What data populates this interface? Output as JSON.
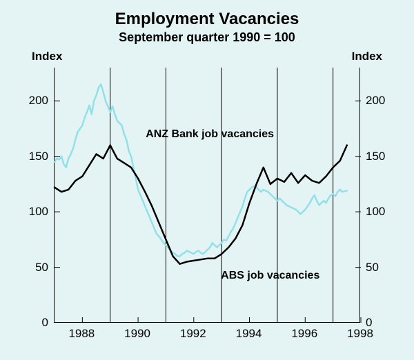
{
  "chart": {
    "type": "line",
    "title": "Employment Vacancies",
    "subtitle": "September quarter 1990 = 100",
    "y_axis_label_left": "Index",
    "y_axis_label_right": "Index",
    "background_color": "#e4f4f5",
    "border_color": "#000000",
    "ylim": [
      0,
      230
    ],
    "yticks": [
      0,
      50,
      100,
      150,
      200
    ],
    "xlim": [
      1987,
      1998
    ],
    "xticks": [
      1988,
      1990,
      1992,
      1994,
      1996,
      1998
    ],
    "major_grid_x": [
      1989,
      1991,
      1993,
      1995,
      1997
    ],
    "xtick_marks": [
      1988,
      1990,
      1992,
      1994,
      1996,
      1998
    ],
    "series": [
      {
        "name": "ANZ Bank  job vacancies",
        "label_pos": {
          "x": 1990.3,
          "y": 175
        },
        "color": "#93e0e8",
        "line_width": 2.5,
        "data": [
          [
            1987.0,
            145
          ],
          [
            1987.083,
            148
          ],
          [
            1987.167,
            147
          ],
          [
            1987.25,
            150
          ],
          [
            1987.333,
            143
          ],
          [
            1987.417,
            140
          ],
          [
            1987.5,
            148
          ],
          [
            1987.583,
            152
          ],
          [
            1987.667,
            157
          ],
          [
            1987.75,
            165
          ],
          [
            1987.833,
            172
          ],
          [
            1987.917,
            175
          ],
          [
            1988.0,
            178
          ],
          [
            1988.083,
            185
          ],
          [
            1988.167,
            190
          ],
          [
            1988.25,
            196
          ],
          [
            1988.333,
            188
          ],
          [
            1988.417,
            200
          ],
          [
            1988.5,
            205
          ],
          [
            1988.583,
            212
          ],
          [
            1988.667,
            215
          ],
          [
            1988.75,
            208
          ],
          [
            1988.833,
            200
          ],
          [
            1988.917,
            195
          ],
          [
            1989.0,
            190
          ],
          [
            1989.083,
            195
          ],
          [
            1989.167,
            188
          ],
          [
            1989.25,
            182
          ],
          [
            1989.333,
            180
          ],
          [
            1989.417,
            178
          ],
          [
            1989.5,
            170
          ],
          [
            1989.583,
            165
          ],
          [
            1989.667,
            155
          ],
          [
            1989.75,
            150
          ],
          [
            1989.833,
            140
          ],
          [
            1989.917,
            130
          ],
          [
            1990.0,
            120
          ],
          [
            1990.083,
            115
          ],
          [
            1990.167,
            110
          ],
          [
            1990.25,
            105
          ],
          [
            1990.333,
            100
          ],
          [
            1990.417,
            95
          ],
          [
            1990.5,
            90
          ],
          [
            1990.583,
            85
          ],
          [
            1990.667,
            80
          ],
          [
            1990.75,
            78
          ],
          [
            1990.833,
            75
          ],
          [
            1990.917,
            72
          ],
          [
            1991.0,
            70
          ],
          [
            1991.083,
            68
          ],
          [
            1991.167,
            65
          ],
          [
            1991.25,
            63
          ],
          [
            1991.333,
            62
          ],
          [
            1991.417,
            60
          ],
          [
            1991.5,
            60
          ],
          [
            1991.583,
            62
          ],
          [
            1991.667,
            63
          ],
          [
            1991.75,
            65
          ],
          [
            1991.833,
            64
          ],
          [
            1991.917,
            63
          ],
          [
            1992.0,
            62
          ],
          [
            1992.083,
            64
          ],
          [
            1992.167,
            65
          ],
          [
            1992.25,
            63
          ],
          [
            1992.333,
            62
          ],
          [
            1992.417,
            64
          ],
          [
            1992.5,
            66
          ],
          [
            1992.583,
            68
          ],
          [
            1992.667,
            72
          ],
          [
            1992.75,
            70
          ],
          [
            1992.833,
            68
          ],
          [
            1992.917,
            70
          ],
          [
            1993.0,
            72
          ],
          [
            1993.083,
            75
          ],
          [
            1993.167,
            74
          ],
          [
            1993.25,
            78
          ],
          [
            1993.333,
            82
          ],
          [
            1993.417,
            85
          ],
          [
            1993.5,
            90
          ],
          [
            1993.583,
            95
          ],
          [
            1993.667,
            100
          ],
          [
            1993.75,
            105
          ],
          [
            1993.833,
            112
          ],
          [
            1993.917,
            118
          ],
          [
            1994.0,
            120
          ],
          [
            1994.083,
            122
          ],
          [
            1994.167,
            123
          ],
          [
            1994.25,
            122
          ],
          [
            1994.333,
            120
          ],
          [
            1994.417,
            118
          ],
          [
            1994.5,
            120
          ],
          [
            1994.583,
            119
          ],
          [
            1994.667,
            118
          ],
          [
            1994.75,
            116
          ],
          [
            1994.833,
            114
          ],
          [
            1994.917,
            112
          ],
          [
            1995.0,
            110
          ],
          [
            1995.083,
            112
          ],
          [
            1995.167,
            110
          ],
          [
            1995.25,
            108
          ],
          [
            1995.333,
            106
          ],
          [
            1995.417,
            105
          ],
          [
            1995.5,
            104
          ],
          [
            1995.583,
            103
          ],
          [
            1995.667,
            102
          ],
          [
            1995.75,
            100
          ],
          [
            1995.833,
            98
          ],
          [
            1995.917,
            100
          ],
          [
            1996.0,
            102
          ],
          [
            1996.083,
            105
          ],
          [
            1996.167,
            108
          ],
          [
            1996.25,
            112
          ],
          [
            1996.333,
            115
          ],
          [
            1996.417,
            110
          ],
          [
            1996.5,
            106
          ],
          [
            1996.583,
            108
          ],
          [
            1996.667,
            110
          ],
          [
            1996.75,
            108
          ],
          [
            1996.833,
            112
          ],
          [
            1996.917,
            115
          ],
          [
            1997.0,
            116
          ],
          [
            1997.083,
            114
          ],
          [
            1997.167,
            118
          ],
          [
            1997.25,
            120
          ],
          [
            1997.333,
            118
          ],
          [
            1997.5,
            119
          ]
        ]
      },
      {
        "name": "ABS job vacancies",
        "label_pos": {
          "x": 1993.0,
          "y": 48
        },
        "color": "#000000",
        "line_width": 2.5,
        "data": [
          [
            1987.0,
            122
          ],
          [
            1987.25,
            118
          ],
          [
            1987.5,
            120
          ],
          [
            1987.75,
            128
          ],
          [
            1988.0,
            132
          ],
          [
            1988.25,
            142
          ],
          [
            1988.5,
            152
          ],
          [
            1988.75,
            148
          ],
          [
            1989.0,
            160
          ],
          [
            1989.25,
            148
          ],
          [
            1989.5,
            144
          ],
          [
            1989.75,
            140
          ],
          [
            1990.0,
            130
          ],
          [
            1990.25,
            118
          ],
          [
            1990.5,
            105
          ],
          [
            1990.75,
            90
          ],
          [
            1991.0,
            75
          ],
          [
            1991.25,
            60
          ],
          [
            1991.5,
            53
          ],
          [
            1991.75,
            55
          ],
          [
            1992.0,
            56
          ],
          [
            1992.25,
            57
          ],
          [
            1992.5,
            58
          ],
          [
            1992.75,
            58
          ],
          [
            1993.0,
            62
          ],
          [
            1993.25,
            68
          ],
          [
            1993.5,
            76
          ],
          [
            1993.75,
            88
          ],
          [
            1994.0,
            108
          ],
          [
            1994.25,
            125
          ],
          [
            1994.5,
            140
          ],
          [
            1994.75,
            125
          ],
          [
            1995.0,
            130
          ],
          [
            1995.25,
            127
          ],
          [
            1995.5,
            135
          ],
          [
            1995.75,
            126
          ],
          [
            1996.0,
            133
          ],
          [
            1996.25,
            128
          ],
          [
            1996.5,
            126
          ],
          [
            1996.75,
            132
          ],
          [
            1997.0,
            140
          ],
          [
            1997.25,
            146
          ],
          [
            1997.5,
            160
          ]
        ]
      }
    ]
  }
}
